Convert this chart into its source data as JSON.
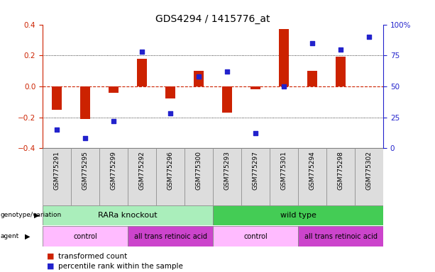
{
  "title": "GDS4294 / 1415776_at",
  "samples": [
    "GSM775291",
    "GSM775295",
    "GSM775299",
    "GSM775292",
    "GSM775296",
    "GSM775300",
    "GSM775293",
    "GSM775297",
    "GSM775301",
    "GSM775294",
    "GSM775298",
    "GSM775302"
  ],
  "bar_values": [
    -0.15,
    -0.21,
    -0.04,
    0.18,
    -0.08,
    0.1,
    -0.17,
    -0.02,
    0.37,
    0.1,
    0.19,
    0.0
  ],
  "dot_values": [
    15,
    8,
    22,
    78,
    28,
    58,
    62,
    12,
    50,
    85,
    80,
    90
  ],
  "ylim_left": [
    -0.4,
    0.4
  ],
  "ylim_right": [
    0,
    100
  ],
  "yticks_left": [
    -0.4,
    -0.2,
    0.0,
    0.2,
    0.4
  ],
  "yticks_right": [
    0,
    25,
    50,
    75,
    100
  ],
  "ytick_labels_right": [
    "0",
    "25",
    "50",
    "75",
    "100%"
  ],
  "bar_color": "#cc2200",
  "dot_color": "#2222cc",
  "background_color": "#ffffff",
  "zero_line_color": "#cc2200",
  "dotted_line_color": "#000000",
  "genotype_variation": [
    {
      "label": "RARa knockout",
      "start": 0,
      "end": 6,
      "color": "#aaeebb"
    },
    {
      "label": "wild type",
      "start": 6,
      "end": 12,
      "color": "#44cc55"
    }
  ],
  "agent": [
    {
      "label": "control",
      "start": 0,
      "end": 3,
      "color": "#ffbbff"
    },
    {
      "label": "all trans retinoic acid",
      "start": 3,
      "end": 6,
      "color": "#cc44cc"
    },
    {
      "label": "control",
      "start": 6,
      "end": 9,
      "color": "#ffbbff"
    },
    {
      "label": "all trans retinoic acid",
      "start": 9,
      "end": 12,
      "color": "#cc44cc"
    }
  ],
  "legend_items": [
    {
      "color": "#cc2200",
      "label": "transformed count"
    },
    {
      "color": "#2222cc",
      "label": "percentile rank within the sample"
    }
  ],
  "title_fontsize": 10,
  "tick_fontsize": 7.5,
  "sample_fontsize": 6.5,
  "anno_fontsize": 7.5,
  "legend_fontsize": 7.5
}
